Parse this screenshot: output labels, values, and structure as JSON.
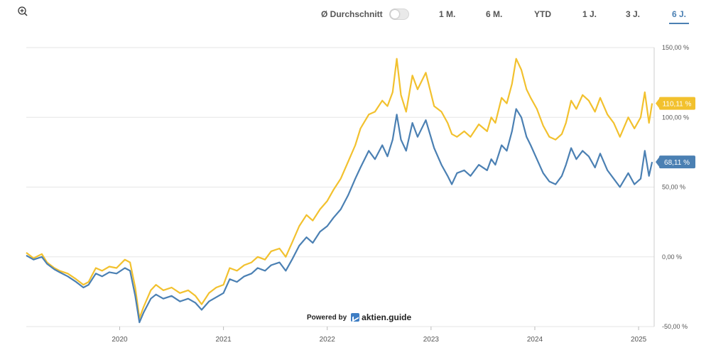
{
  "toolbar": {
    "zoom_icon": "zoom-in-icon",
    "average_label": "Ø Durchschnitt",
    "average_enabled": false,
    "ranges": [
      {
        "label": "1 M.",
        "active": false
      },
      {
        "label": "6 M.",
        "active": false
      },
      {
        "label": "YTD",
        "active": false
      },
      {
        "label": "1 J.",
        "active": false
      },
      {
        "label": "3 J.",
        "active": false
      },
      {
        "label": "6 J.",
        "active": true
      }
    ]
  },
  "powered_by": {
    "prefix": "Powered by",
    "brand": "aktien.guide"
  },
  "colors": {
    "series_a": "#f2c12e",
    "series_b": "#4b80b3",
    "active_range": "#4b80b3",
    "grid": "#e6e6e6"
  },
  "chart_data": {
    "type": "line",
    "y_unit": "%",
    "ylim": [
      -50,
      150
    ],
    "yticks": [
      {
        "value": 150,
        "label": "150,00 %"
      },
      {
        "value": 100,
        "label": "100,00 %"
      },
      {
        "value": 50,
        "label": "50,00 %"
      },
      {
        "value": 0,
        "label": "0,00 %"
      },
      {
        "value": -50,
        "label": "-50,00 %"
      }
    ],
    "xlim": [
      2019.1,
      2025.15
    ],
    "xticks": [
      {
        "value": 2020.0,
        "label": "2020"
      },
      {
        "value": 2021.0,
        "label": "2021"
      },
      {
        "value": 2022.0,
        "label": "2022"
      },
      {
        "value": 2023.0,
        "label": "2023"
      },
      {
        "value": 2024.0,
        "label": "2024"
      },
      {
        "value": 2025.0,
        "label": "2025"
      }
    ],
    "grid": true,
    "series": [
      {
        "color": "#f2c12e",
        "last_label": "110,11 %",
        "points": [
          [
            2019.1,
            3
          ],
          [
            2019.17,
            -1
          ],
          [
            2019.25,
            2
          ],
          [
            2019.3,
            -4
          ],
          [
            2019.37,
            -8
          ],
          [
            2019.42,
            -10
          ],
          [
            2019.5,
            -12
          ],
          [
            2019.58,
            -16
          ],
          [
            2019.65,
            -20
          ],
          [
            2019.7,
            -18
          ],
          [
            2019.77,
            -8
          ],
          [
            2019.83,
            -10
          ],
          [
            2019.9,
            -7
          ],
          [
            2019.97,
            -8
          ],
          [
            2020.05,
            -2
          ],
          [
            2020.1,
            -4
          ],
          [
            2020.15,
            -22
          ],
          [
            2020.19,
            -44
          ],
          [
            2020.23,
            -36
          ],
          [
            2020.3,
            -24
          ],
          [
            2020.35,
            -20
          ],
          [
            2020.42,
            -24
          ],
          [
            2020.5,
            -22
          ],
          [
            2020.58,
            -26
          ],
          [
            2020.66,
            -24
          ],
          [
            2020.73,
            -28
          ],
          [
            2020.79,
            -34
          ],
          [
            2020.86,
            -26
          ],
          [
            2020.93,
            -22
          ],
          [
            2021.0,
            -20
          ],
          [
            2021.06,
            -8
          ],
          [
            2021.13,
            -10
          ],
          [
            2021.2,
            -6
          ],
          [
            2021.27,
            -4
          ],
          [
            2021.33,
            0
          ],
          [
            2021.4,
            -2
          ],
          [
            2021.46,
            4
          ],
          [
            2021.54,
            6
          ],
          [
            2021.6,
            0
          ],
          [
            2021.66,
            10
          ],
          [
            2021.73,
            22
          ],
          [
            2021.8,
            30
          ],
          [
            2021.86,
            26
          ],
          [
            2021.93,
            34
          ],
          [
            2022.0,
            40
          ],
          [
            2022.06,
            48
          ],
          [
            2022.13,
            56
          ],
          [
            2022.2,
            68
          ],
          [
            2022.27,
            80
          ],
          [
            2022.32,
            92
          ],
          [
            2022.4,
            102
          ],
          [
            2022.46,
            104
          ],
          [
            2022.53,
            112
          ],
          [
            2022.58,
            108
          ],
          [
            2022.63,
            118
          ],
          [
            2022.67,
            142
          ],
          [
            2022.71,
            116
          ],
          [
            2022.76,
            104
          ],
          [
            2022.82,
            130
          ],
          [
            2022.87,
            120
          ],
          [
            2022.95,
            132
          ],
          [
            2023.03,
            108
          ],
          [
            2023.1,
            104
          ],
          [
            2023.16,
            96
          ],
          [
            2023.2,
            88
          ],
          [
            2023.25,
            86
          ],
          [
            2023.32,
            90
          ],
          [
            2023.38,
            86
          ],
          [
            2023.46,
            95
          ],
          [
            2023.54,
            90
          ],
          [
            2023.58,
            100
          ],
          [
            2023.62,
            96
          ],
          [
            2023.68,
            114
          ],
          [
            2023.73,
            110
          ],
          [
            2023.78,
            124
          ],
          [
            2023.82,
            142
          ],
          [
            2023.87,
            134
          ],
          [
            2023.92,
            120
          ],
          [
            2023.96,
            114
          ],
          [
            2024.02,
            106
          ],
          [
            2024.08,
            94
          ],
          [
            2024.14,
            86
          ],
          [
            2024.2,
            84
          ],
          [
            2024.26,
            88
          ],
          [
            2024.3,
            96
          ],
          [
            2024.35,
            112
          ],
          [
            2024.4,
            106
          ],
          [
            2024.46,
            116
          ],
          [
            2024.52,
            112
          ],
          [
            2024.58,
            104
          ],
          [
            2024.63,
            114
          ],
          [
            2024.7,
            102
          ],
          [
            2024.76,
            96
          ],
          [
            2024.82,
            86
          ],
          [
            2024.9,
            100
          ],
          [
            2024.96,
            92
          ],
          [
            2025.02,
            100
          ],
          [
            2025.06,
            118
          ],
          [
            2025.1,
            96
          ],
          [
            2025.13,
            110
          ]
        ]
      },
      {
        "color": "#4b80b3",
        "last_label": "68,11 %",
        "points": [
          [
            2019.1,
            1
          ],
          [
            2019.17,
            -2
          ],
          [
            2019.25,
            0
          ],
          [
            2019.3,
            -5
          ],
          [
            2019.37,
            -9
          ],
          [
            2019.42,
            -11
          ],
          [
            2019.5,
            -14
          ],
          [
            2019.58,
            -18
          ],
          [
            2019.65,
            -22
          ],
          [
            2019.7,
            -20
          ],
          [
            2019.77,
            -12
          ],
          [
            2019.83,
            -14
          ],
          [
            2019.9,
            -11
          ],
          [
            2019.97,
            -12
          ],
          [
            2020.05,
            -8
          ],
          [
            2020.1,
            -10
          ],
          [
            2020.15,
            -28
          ],
          [
            2020.19,
            -47
          ],
          [
            2020.23,
            -40
          ],
          [
            2020.3,
            -30
          ],
          [
            2020.35,
            -27
          ],
          [
            2020.42,
            -30
          ],
          [
            2020.5,
            -28
          ],
          [
            2020.58,
            -32
          ],
          [
            2020.66,
            -30
          ],
          [
            2020.73,
            -33
          ],
          [
            2020.79,
            -38
          ],
          [
            2020.86,
            -32
          ],
          [
            2020.93,
            -29
          ],
          [
            2021.0,
            -26
          ],
          [
            2021.06,
            -16
          ],
          [
            2021.13,
            -18
          ],
          [
            2021.2,
            -14
          ],
          [
            2021.27,
            -12
          ],
          [
            2021.33,
            -8
          ],
          [
            2021.4,
            -10
          ],
          [
            2021.46,
            -6
          ],
          [
            2021.54,
            -4
          ],
          [
            2021.6,
            -10
          ],
          [
            2021.66,
            -2
          ],
          [
            2021.73,
            8
          ],
          [
            2021.8,
            14
          ],
          [
            2021.86,
            10
          ],
          [
            2021.93,
            18
          ],
          [
            2022.0,
            22
          ],
          [
            2022.06,
            28
          ],
          [
            2022.13,
            34
          ],
          [
            2022.2,
            44
          ],
          [
            2022.27,
            56
          ],
          [
            2022.32,
            64
          ],
          [
            2022.4,
            76
          ],
          [
            2022.46,
            70
          ],
          [
            2022.53,
            80
          ],
          [
            2022.58,
            72
          ],
          [
            2022.63,
            84
          ],
          [
            2022.67,
            102
          ],
          [
            2022.71,
            84
          ],
          [
            2022.76,
            76
          ],
          [
            2022.82,
            96
          ],
          [
            2022.87,
            86
          ],
          [
            2022.95,
            98
          ],
          [
            2023.03,
            78
          ],
          [
            2023.1,
            66
          ],
          [
            2023.16,
            58
          ],
          [
            2023.2,
            52
          ],
          [
            2023.25,
            60
          ],
          [
            2023.32,
            62
          ],
          [
            2023.38,
            58
          ],
          [
            2023.46,
            66
          ],
          [
            2023.54,
            62
          ],
          [
            2023.58,
            70
          ],
          [
            2023.62,
            66
          ],
          [
            2023.68,
            80
          ],
          [
            2023.73,
            76
          ],
          [
            2023.78,
            90
          ],
          [
            2023.82,
            106
          ],
          [
            2023.87,
            100
          ],
          [
            2023.92,
            86
          ],
          [
            2023.96,
            80
          ],
          [
            2024.02,
            70
          ],
          [
            2024.08,
            60
          ],
          [
            2024.14,
            54
          ],
          [
            2024.2,
            52
          ],
          [
            2024.26,
            58
          ],
          [
            2024.3,
            66
          ],
          [
            2024.35,
            78
          ],
          [
            2024.4,
            70
          ],
          [
            2024.46,
            76
          ],
          [
            2024.52,
            72
          ],
          [
            2024.58,
            64
          ],
          [
            2024.63,
            74
          ],
          [
            2024.7,
            62
          ],
          [
            2024.76,
            56
          ],
          [
            2024.82,
            50
          ],
          [
            2024.9,
            60
          ],
          [
            2024.96,
            52
          ],
          [
            2025.02,
            56
          ],
          [
            2025.06,
            76
          ],
          [
            2025.1,
            58
          ],
          [
            2025.13,
            68
          ]
        ]
      }
    ]
  }
}
